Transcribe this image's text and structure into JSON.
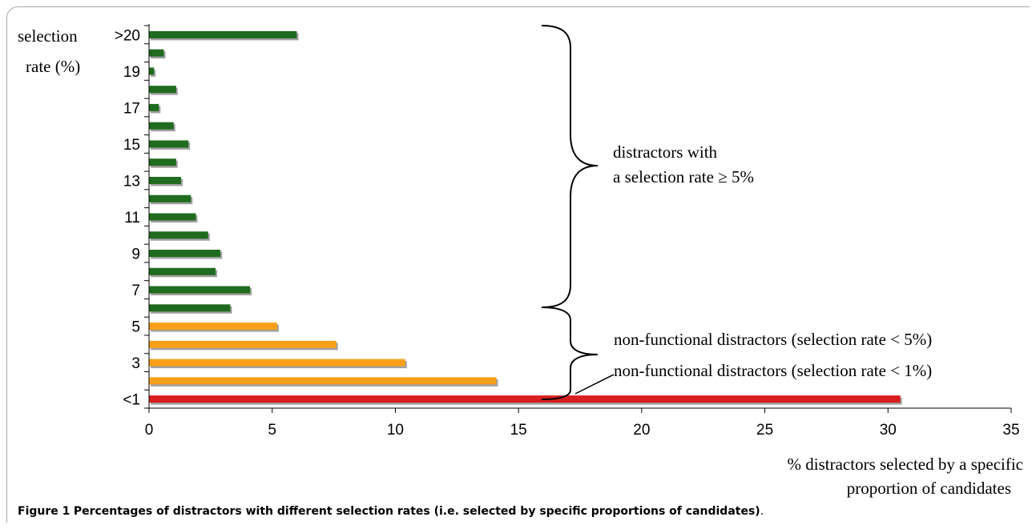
{
  "chart_data": {
    "type": "bar",
    "orientation": "horizontal",
    "categories": [
      ">20",
      "",
      "19",
      "",
      "17",
      "",
      "15",
      "",
      "13",
      "",
      "11",
      "",
      "9",
      "",
      "7",
      "",
      "5",
      "",
      "3",
      "",
      "<1"
    ],
    "values": [
      6.0,
      0.6,
      0.2,
      1.1,
      0.4,
      1.0,
      1.6,
      1.1,
      1.3,
      1.7,
      1.9,
      2.4,
      2.9,
      2.7,
      4.1,
      3.3,
      5.2,
      7.6,
      10.4,
      14.1,
      30.5
    ],
    "bar_colors": [
      "#1f6b1f",
      "#1f6b1f",
      "#1f6b1f",
      "#1f6b1f",
      "#1f6b1f",
      "#1f6b1f",
      "#1f6b1f",
      "#1f6b1f",
      "#1f6b1f",
      "#1f6b1f",
      "#1f6b1f",
      "#1f6b1f",
      "#1f6b1f",
      "#1f6b1f",
      "#1f6b1f",
      "#1f6b1f",
      "#f8a01a",
      "#f8a01a",
      "#f8a01a",
      "#f8a01a",
      "#d81e1e"
    ],
    "shadow_color": "#a0a0a0",
    "xlim": [
      0,
      35
    ],
    "xticks": [
      "0",
      "5",
      "10",
      "15",
      "20",
      "25",
      "30",
      "35"
    ],
    "ylabel_lines": [
      "selection",
      "rate (%)"
    ],
    "xlabel_lines": [
      "% distractors selected by a specific",
      "proportion of candidates"
    ],
    "annotations": {
      "green_group_lines": [
        "distractors with",
        "a selection rate ≥ 5%"
      ],
      "orange_group_label": "non-functional distractors (selection rate < 5%)",
      "red_group_label": "non-functional distractors (selection rate < 1%)"
    },
    "grid": false,
    "legend": "none"
  },
  "caption": {
    "label": "Figure 1",
    "text": "Percentages of distractors with different selection rates (i.e. selected by specific proportions of candidates)",
    "end": "."
  }
}
